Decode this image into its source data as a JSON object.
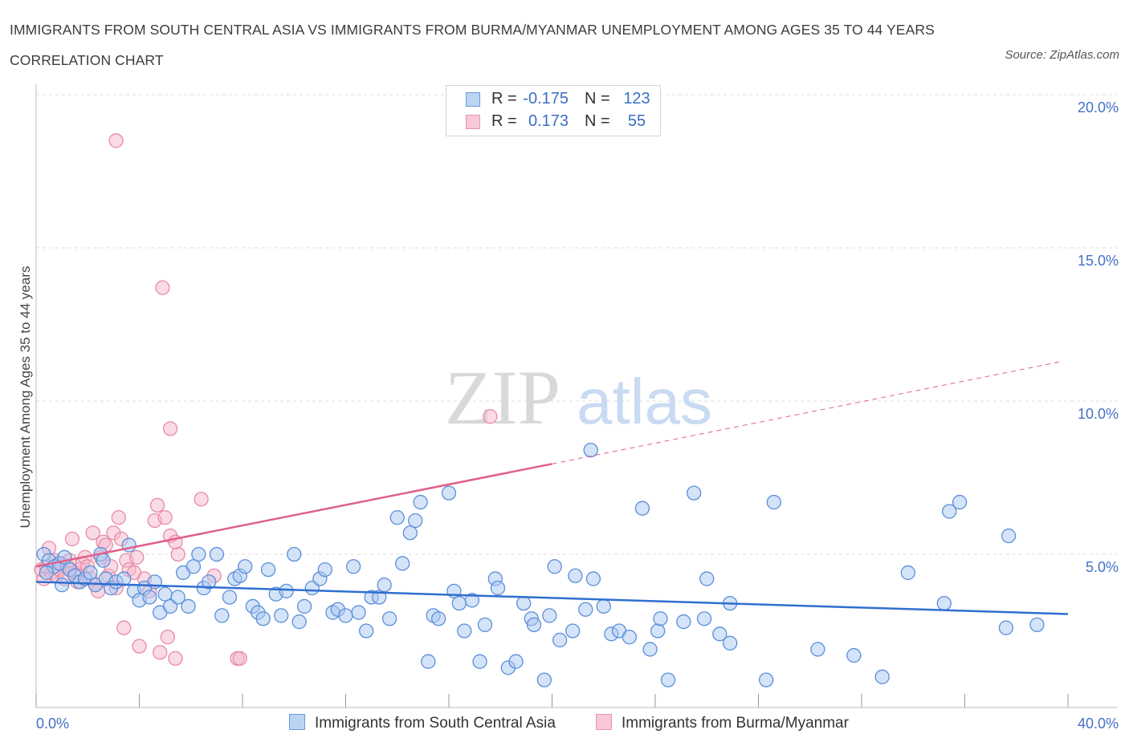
{
  "header": {
    "title": "IMMIGRANTS FROM SOUTH CENTRAL ASIA VS IMMIGRANTS FROM BURMA/MYANMAR UNEMPLOYMENT AMONG AGES 35 TO 44 YEARS CORRELATION CHART",
    "source": "Source: ZipAtlas.com"
  },
  "watermark": {
    "zip": "ZIP",
    "atlas": "atlas"
  },
  "legend": {
    "rows": [
      {
        "r_label": "R =",
        "r_value": "-0.175",
        "n_label": "N =",
        "n_value": "123"
      },
      {
        "r_label": "R =",
        "r_value": "0.173",
        "n_label": "N =",
        "n_value": "55"
      }
    ]
  },
  "colors": {
    "blue_fill": "#a9c8f2",
    "blue_stroke": "#5b8fd8",
    "blue_line": "#2f6fcf",
    "pink_fill": "#f5b8cb",
    "pink_stroke": "#e88aa8",
    "pink_line": "#e0608b",
    "grid": "#dcdcdc",
    "tick_text": "#4472c4"
  },
  "chart_data": {
    "type": "scatter",
    "xlabel": "",
    "ylabel": "Unemployment Among Ages 35 to 44 years",
    "xlim": [
      0,
      40
    ],
    "ylim": [
      0,
      20
    ],
    "x_tick_labels": [
      "0.0%",
      "40.0%"
    ],
    "y_ticks": [
      5,
      10,
      15,
      20
    ],
    "y_tick_labels": [
      "5.0%",
      "10.0%",
      "15.0%",
      "20.0%"
    ],
    "grid": true,
    "legend_placement": "top-center",
    "series": [
      {
        "name": "Immigrants from South Central Asia",
        "trend": {
          "x0": 0,
          "y0": 4.1,
          "x1": 40,
          "y1": 3.05
        },
        "points": [
          [
            0.3,
            5.0
          ],
          [
            0.5,
            4.8
          ],
          [
            0.7,
            4.6
          ],
          [
            0.9,
            4.7
          ],
          [
            1.1,
            4.9
          ],
          [
            1.3,
            4.5
          ],
          [
            1.5,
            4.3
          ],
          [
            1.7,
            4.1
          ],
          [
            1.9,
            4.2
          ],
          [
            2.1,
            4.4
          ],
          [
            2.3,
            4.0
          ],
          [
            2.5,
            5.0
          ],
          [
            2.7,
            4.2
          ],
          [
            2.9,
            3.9
          ],
          [
            3.1,
            4.1
          ],
          [
            3.4,
            4.2
          ],
          [
            3.6,
            5.3
          ],
          [
            3.8,
            3.8
          ],
          [
            4.0,
            3.5
          ],
          [
            4.2,
            3.9
          ],
          [
            4.4,
            3.6
          ],
          [
            4.6,
            4.1
          ],
          [
            4.8,
            3.1
          ],
          [
            5.0,
            3.7
          ],
          [
            5.2,
            3.3
          ],
          [
            5.5,
            3.6
          ],
          [
            5.7,
            4.4
          ],
          [
            5.9,
            3.3
          ],
          [
            6.1,
            4.6
          ],
          [
            6.3,
            5.0
          ],
          [
            6.5,
            3.9
          ],
          [
            6.7,
            4.1
          ],
          [
            7.0,
            5.0
          ],
          [
            7.2,
            3.0
          ],
          [
            7.5,
            3.6
          ],
          [
            7.7,
            4.2
          ],
          [
            7.9,
            4.3
          ],
          [
            8.1,
            4.6
          ],
          [
            8.4,
            3.3
          ],
          [
            8.6,
            3.1
          ],
          [
            8.8,
            2.9
          ],
          [
            9.0,
            4.5
          ],
          [
            9.3,
            3.7
          ],
          [
            9.5,
            3.0
          ],
          [
            9.7,
            3.8
          ],
          [
            10.0,
            5.0
          ],
          [
            10.2,
            2.8
          ],
          [
            10.4,
            3.3
          ],
          [
            10.7,
            3.9
          ],
          [
            11.0,
            4.2
          ],
          [
            11.2,
            4.5
          ],
          [
            11.5,
            3.1
          ],
          [
            11.7,
            3.2
          ],
          [
            12.0,
            3.0
          ],
          [
            12.3,
            4.6
          ],
          [
            12.5,
            3.1
          ],
          [
            12.8,
            2.5
          ],
          [
            13.0,
            3.6
          ],
          [
            13.3,
            3.6
          ],
          [
            13.5,
            4.0
          ],
          [
            13.7,
            2.9
          ],
          [
            14.0,
            6.2
          ],
          [
            14.2,
            4.7
          ],
          [
            14.5,
            5.7
          ],
          [
            14.7,
            6.1
          ],
          [
            14.9,
            6.7
          ],
          [
            15.2,
            1.5
          ],
          [
            15.4,
            3.0
          ],
          [
            15.6,
            2.9
          ],
          [
            16.0,
            7.0
          ],
          [
            16.2,
            3.8
          ],
          [
            16.4,
            3.4
          ],
          [
            16.6,
            2.5
          ],
          [
            16.9,
            3.5
          ],
          [
            17.2,
            1.5
          ],
          [
            17.4,
            2.7
          ],
          [
            17.8,
            4.2
          ],
          [
            17.9,
            3.9
          ],
          [
            18.3,
            1.3
          ],
          [
            18.6,
            1.5
          ],
          [
            18.9,
            3.4
          ],
          [
            19.2,
            2.9
          ],
          [
            19.3,
            2.7
          ],
          [
            19.7,
            0.9
          ],
          [
            19.9,
            3.0
          ],
          [
            20.1,
            4.6
          ],
          [
            20.3,
            2.2
          ],
          [
            20.8,
            2.5
          ],
          [
            20.9,
            4.3
          ],
          [
            21.3,
            3.2
          ],
          [
            21.5,
            8.4
          ],
          [
            21.6,
            4.2
          ],
          [
            22.0,
            3.3
          ],
          [
            22.3,
            2.4
          ],
          [
            22.6,
            2.5
          ],
          [
            23.0,
            2.3
          ],
          [
            23.5,
            6.5
          ],
          [
            23.8,
            1.9
          ],
          [
            24.1,
            2.5
          ],
          [
            24.2,
            2.9
          ],
          [
            24.5,
            0.9
          ],
          [
            25.1,
            2.8
          ],
          [
            25.5,
            7.0
          ],
          [
            25.9,
            2.9
          ],
          [
            26.0,
            4.2
          ],
          [
            26.5,
            2.4
          ],
          [
            26.9,
            2.1
          ],
          [
            26.9,
            3.4
          ],
          [
            28.3,
            0.9
          ],
          [
            28.6,
            6.7
          ],
          [
            30.3,
            1.9
          ],
          [
            31.7,
            1.7
          ],
          [
            32.8,
            1.0
          ],
          [
            33.8,
            4.4
          ],
          [
            35.2,
            3.4
          ],
          [
            35.4,
            6.4
          ],
          [
            35.8,
            6.7
          ],
          [
            37.6,
            2.6
          ],
          [
            37.7,
            5.6
          ],
          [
            38.8,
            2.7
          ],
          [
            0.4,
            4.4
          ],
          [
            1.0,
            4.0
          ],
          [
            2.6,
            4.8
          ]
        ]
      },
      {
        "name": "Immigrants from Burma/Myanmar",
        "trend": {
          "x0": 0,
          "y0": 4.6,
          "x1": 20,
          "y1": 7.95
        },
        "trend_ext": {
          "x0": 20,
          "y0": 7.95,
          "x1": 39.8,
          "y1": 11.3
        },
        "points": [
          [
            0.2,
            4.5
          ],
          [
            0.3,
            4.2
          ],
          [
            0.4,
            4.6
          ],
          [
            0.5,
            5.2
          ],
          [
            0.6,
            4.4
          ],
          [
            0.7,
            4.8
          ],
          [
            0.8,
            4.3
          ],
          [
            0.9,
            4.5
          ],
          [
            1.0,
            4.7
          ],
          [
            1.1,
            4.2
          ],
          [
            1.2,
            4.6
          ],
          [
            1.3,
            4.8
          ],
          [
            1.4,
            5.5
          ],
          [
            1.5,
            4.4
          ],
          [
            1.6,
            4.1
          ],
          [
            1.7,
            4.5
          ],
          [
            1.8,
            4.7
          ],
          [
            1.9,
            4.9
          ],
          [
            2.0,
            4.6
          ],
          [
            2.1,
            4.2
          ],
          [
            2.2,
            5.7
          ],
          [
            2.3,
            4.0
          ],
          [
            2.4,
            3.8
          ],
          [
            2.5,
            4.9
          ],
          [
            2.6,
            5.4
          ],
          [
            2.7,
            5.3
          ],
          [
            2.8,
            4.3
          ],
          [
            2.9,
            4.6
          ],
          [
            3.0,
            5.7
          ],
          [
            3.1,
            3.9
          ],
          [
            3.2,
            6.2
          ],
          [
            3.3,
            5.5
          ],
          [
            3.4,
            2.6
          ],
          [
            3.5,
            4.8
          ],
          [
            3.6,
            4.5
          ],
          [
            3.8,
            4.4
          ],
          [
            3.9,
            4.9
          ],
          [
            4.0,
            2.0
          ],
          [
            4.2,
            4.2
          ],
          [
            4.4,
            3.8
          ],
          [
            4.6,
            6.1
          ],
          [
            4.7,
            6.6
          ],
          [
            4.8,
            1.8
          ],
          [
            5.0,
            6.2
          ],
          [
            5.1,
            2.3
          ],
          [
            5.2,
            5.6
          ],
          [
            5.4,
            1.6
          ],
          [
            5.5,
            5.0
          ],
          [
            3.1,
            18.5
          ],
          [
            4.9,
            13.7
          ],
          [
            5.2,
            9.1
          ],
          [
            5.4,
            5.4
          ],
          [
            6.4,
            6.8
          ],
          [
            6.9,
            4.3
          ],
          [
            7.8,
            1.6
          ],
          [
            7.9,
            1.6
          ],
          [
            17.6,
            9.5
          ]
        ]
      }
    ]
  },
  "bottom_legend": [
    {
      "label": "Immigrants from South Central Asia"
    },
    {
      "label": "Immigrants from Burma/Myanmar"
    }
  ]
}
